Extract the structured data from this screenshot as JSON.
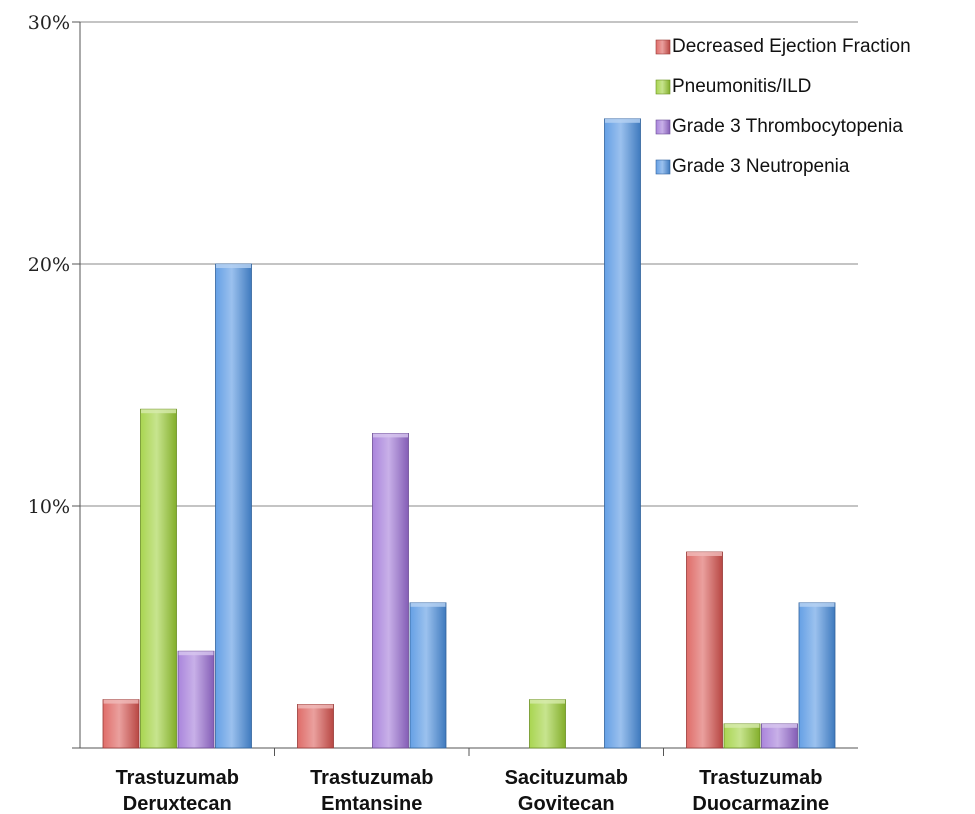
{
  "chart_data": {
    "type": "bar",
    "categories": [
      [
        "Trastuzumab",
        "Deruxtecan"
      ],
      [
        "Trastuzumab",
        "Emtansine"
      ],
      [
        "Sacituzumab",
        "Govitecan"
      ],
      [
        "Trastuzumab",
        "Duocarmazine"
      ]
    ],
    "series": [
      {
        "name": "Decreased Ejection Fraction",
        "color": "#d9534f",
        "values": [
          2.0,
          1.8,
          0,
          8.1
        ]
      },
      {
        "name": "Pneumonitis/ILD",
        "color": "#9acd32",
        "values": [
          14.0,
          0,
          2.0,
          1.0
        ]
      },
      {
        "name": "Grade 3 Thrombocytopenia",
        "color": "#9b6fd6",
        "values": [
          4.0,
          13.0,
          0,
          1.0
        ]
      },
      {
        "name": "Grade 3 Neutropenia",
        "color": "#4a8fe0",
        "values": [
          20.0,
          6.0,
          26.0,
          6.0
        ]
      }
    ],
    "yticks": [
      "",
      "10%",
      "20%",
      "30%"
    ],
    "ylim": [
      0,
      30
    ],
    "unit": "%",
    "grid": true,
    "legend": "top-right"
  }
}
